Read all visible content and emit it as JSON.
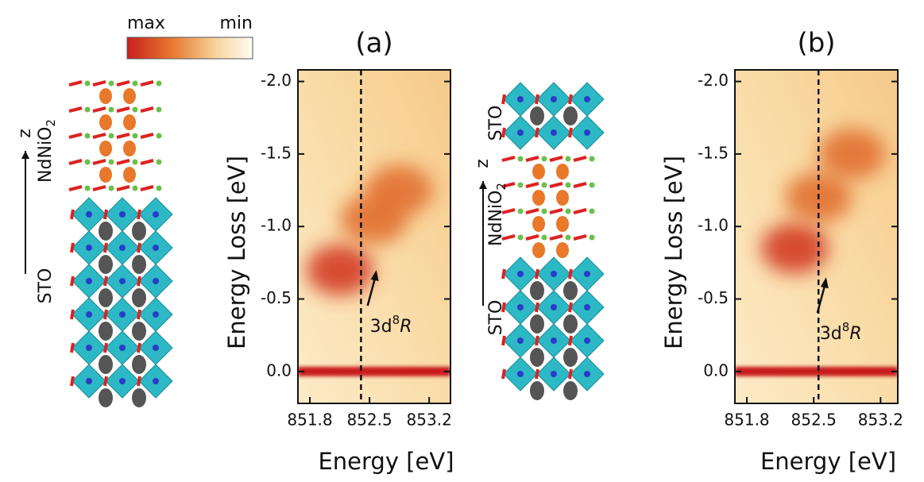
{
  "colorbar": {
    "max_label": "max",
    "min_label": "min"
  },
  "structures": [
    {
      "z_label": "z",
      "labels": [
        {
          "text": "NdNiO",
          "sub": "2"
        },
        {
          "text": "STO"
        }
      ]
    },
    {
      "z_label": "z",
      "labels": [
        {
          "text": "STO"
        },
        {
          "text": "NdNiO",
          "sub": "2"
        },
        {
          "text": "STO"
        }
      ]
    }
  ],
  "chart_data": [
    {
      "type": "heatmap",
      "panel_label": "(a)",
      "xlabel": "Energy [eV]",
      "ylabel": "Energy Loss [eV]",
      "xlim": [
        851.66,
        853.45
      ],
      "ylim": [
        0.22,
        -2.08
      ],
      "xticks": [
        851.8,
        852.5,
        853.2
      ],
      "yticks": [
        {
          "value": 0,
          "label": "0.0"
        },
        -0.5,
        {
          "value": -1,
          "label": "-1.0"
        },
        -1.5,
        {
          "value": -2,
          "label": "-2.0"
        }
      ],
      "vline": 852.4,
      "elastic_peak": 0,
      "features": [
        {
          "x": 852.15,
          "y": -0.7
        },
        {
          "x": 852.55,
          "y": -1.05
        },
        {
          "x": 852.85,
          "y": -1.25
        }
      ],
      "annotation": {
        "parts": [
          "3d",
          "8",
          "R"
        ],
        "xy": [
          852.58,
          -0.7
        ]
      }
    },
    {
      "type": "heatmap",
      "panel_label": "(b)",
      "xlabel": "Energy [eV]",
      "ylabel": "Energy Loss [eV]",
      "xlim": [
        851.675,
        853.38
      ],
      "ylim": [
        0.22,
        -2.08
      ],
      "xticks": [
        851.8,
        852.5,
        853.2
      ],
      "yticks": [
        {
          "value": 0,
          "label": "0.0"
        },
        -0.5,
        {
          "value": -1,
          "label": "-1.0"
        },
        -1.5,
        {
          "value": -2,
          "label": "-2.0"
        }
      ],
      "vline": 852.55,
      "elastic_peak": 0,
      "features": [
        {
          "x": 852.3,
          "y": -0.85
        },
        {
          "x": 852.55,
          "y": -1.2
        },
        {
          "x": 852.9,
          "y": -1.5
        }
      ],
      "annotation": {
        "parts": [
          "3d",
          "8",
          "R"
        ],
        "xy": [
          852.63,
          -0.65
        ]
      }
    }
  ]
}
